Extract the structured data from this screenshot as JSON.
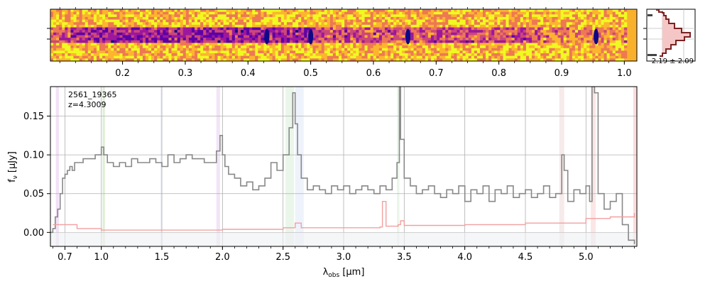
{
  "chart_data": [
    {
      "type": "heatmap",
      "name": "2D spectrum cutout",
      "xlabel": "",
      "xticks": [
        0.2,
        0.3,
        0.4,
        0.5,
        0.6,
        0.7,
        0.8,
        0.9,
        1.0
      ],
      "xtick_labels": [
        "0.2",
        "0.3",
        "0.4",
        "0.5",
        "0.6",
        "0.7",
        "0.8",
        "0.9",
        "1.0"
      ],
      "xlim": [
        0.085,
        1.02
      ],
      "colormap": "plasma",
      "features": [
        0.43,
        0.5,
        0.655,
        0.955
      ]
    },
    {
      "type": "histogram",
      "name": "flux-ratio distribution",
      "annotation": "2.19 ± 2.09"
    },
    {
      "type": "line",
      "name": "1D spectrum",
      "title": "2561_19365",
      "subtitle": "z=4.3009",
      "xlabel": "λ_obs [μm]",
      "ylabel": "f_ν [μJy]",
      "xlim": [
        0.58,
        5.42
      ],
      "ylim": [
        -0.018,
        0.188
      ],
      "xticks": [
        0.7,
        1.0,
        1.5,
        2.0,
        2.5,
        3.0,
        3.5,
        4.0,
        4.5,
        5.0
      ],
      "xtick_labels": [
        "0.7",
        "1.0",
        "1.5",
        "2.0",
        "2.5",
        "3.0",
        "3.5",
        "4.0",
        "4.5",
        "5.0"
      ],
      "yticks": [
        0.0,
        0.05,
        0.1,
        0.15
      ],
      "ytick_labels": [
        "0.00",
        "0.05",
        "0.10",
        "0.15"
      ],
      "grid": true,
      "line_bands": [
        {
          "x0": 0.625,
          "x1": 0.65,
          "color": "#cc88dd"
        },
        {
          "x0": 1.01,
          "x1": 1.03,
          "color": "#88bb66"
        },
        {
          "x0": 1.49,
          "x1": 1.5,
          "color": "#99aadd"
        },
        {
          "x0": 1.95,
          "x1": 1.98,
          "color": "#cc99dd"
        },
        {
          "x0": 2.52,
          "x1": 2.59,
          "color": "#aaddaa"
        },
        {
          "x0": 2.6,
          "x1": 2.67,
          "color": "#bbccee"
        },
        {
          "x0": 3.44,
          "x1": 3.46,
          "color": "#aaddaa"
        },
        {
          "x0": 4.78,
          "x1": 4.82,
          "color": "#ddaaaa"
        },
        {
          "x0": 5.04,
          "x1": 5.08,
          "color": "#ee9999"
        },
        {
          "x0": 5.39,
          "x1": 5.42,
          "color": "#ee7777"
        }
      ],
      "series": [
        {
          "name": "flux",
          "color": "#888888",
          "x": [
            0.58,
            0.6,
            0.62,
            0.64,
            0.66,
            0.68,
            0.7,
            0.72,
            0.74,
            0.76,
            0.78,
            0.8,
            0.85,
            0.9,
            0.95,
            1.0,
            1.02,
            1.05,
            1.1,
            1.15,
            1.2,
            1.25,
            1.3,
            1.35,
            1.4,
            1.45,
            1.5,
            1.55,
            1.6,
            1.65,
            1.7,
            1.75,
            1.8,
            1.85,
            1.9,
            1.95,
            1.98,
            2.0,
            2.02,
            2.05,
            2.1,
            2.15,
            2.2,
            2.25,
            2.3,
            2.35,
            2.4,
            2.45,
            2.5,
            2.55,
            2.58,
            2.6,
            2.62,
            2.65,
            2.7,
            2.75,
            2.8,
            2.85,
            2.9,
            2.95,
            3.0,
            3.05,
            3.1,
            3.15,
            3.2,
            3.25,
            3.3,
            3.35,
            3.4,
            3.44,
            3.46,
            3.47,
            3.5,
            3.55,
            3.6,
            3.65,
            3.7,
            3.75,
            3.8,
            3.85,
            3.9,
            3.95,
            4.0,
            4.05,
            4.1,
            4.15,
            4.2,
            4.25,
            4.3,
            4.35,
            4.4,
            4.45,
            4.5,
            4.55,
            4.6,
            4.65,
            4.7,
            4.75,
            4.8,
            4.82,
            4.85,
            4.9,
            4.95,
            5.0,
            5.03,
            5.05,
            5.07,
            5.1,
            5.15,
            5.2,
            5.25,
            5.3,
            5.35,
            5.4
          ],
          "y": [
            0.0,
            0.005,
            0.02,
            0.03,
            0.05,
            0.07,
            0.075,
            0.08,
            0.085,
            0.08,
            0.09,
            0.09,
            0.095,
            0.095,
            0.1,
            0.11,
            0.1,
            0.09,
            0.085,
            0.09,
            0.085,
            0.095,
            0.09,
            0.09,
            0.095,
            0.09,
            0.085,
            0.1,
            0.09,
            0.095,
            0.1,
            0.095,
            0.095,
            0.09,
            0.09,
            0.105,
            0.125,
            0.1,
            0.085,
            0.075,
            0.07,
            0.06,
            0.065,
            0.055,
            0.06,
            0.07,
            0.09,
            0.08,
            0.1,
            0.135,
            0.18,
            0.14,
            0.1,
            0.07,
            0.055,
            0.06,
            0.055,
            0.05,
            0.06,
            0.055,
            0.06,
            0.05,
            0.055,
            0.06,
            0.055,
            0.05,
            0.06,
            0.055,
            0.07,
            0.09,
            0.188,
            0.12,
            0.07,
            0.06,
            0.05,
            0.055,
            0.06,
            0.05,
            0.045,
            0.055,
            0.05,
            0.06,
            0.04,
            0.055,
            0.05,
            0.06,
            0.04,
            0.055,
            0.05,
            0.06,
            0.045,
            0.05,
            0.055,
            0.045,
            0.05,
            0.06,
            0.045,
            0.05,
            0.1,
            0.08,
            0.04,
            0.055,
            0.05,
            0.06,
            0.04,
            0.188,
            0.18,
            0.05,
            0.03,
            0.04,
            0.05,
            0.01,
            -0.01,
            -0.015
          ]
        },
        {
          "name": "uncertainty",
          "color": "#f2a0a0",
          "x": [
            0.6,
            0.8,
            1.0,
            1.5,
            2.0,
            2.5,
            2.6,
            2.65,
            3.0,
            3.3,
            3.32,
            3.35,
            3.45,
            3.47,
            3.5,
            4.0,
            4.5,
            5.0,
            5.2,
            5.4
          ],
          "y": [
            0.01,
            0.005,
            0.003,
            0.003,
            0.004,
            0.006,
            0.012,
            0.006,
            0.006,
            0.007,
            0.04,
            0.008,
            0.01,
            0.015,
            0.009,
            0.01,
            0.012,
            0.018,
            0.02,
            0.025
          ]
        }
      ]
    }
  ]
}
